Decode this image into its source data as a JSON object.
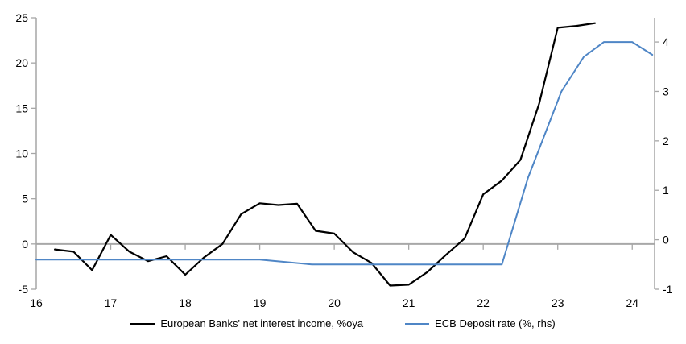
{
  "chart_data": {
    "type": "line",
    "title": "",
    "legend_position": "bottom-center",
    "grid": "zero-line-only",
    "colors": {
      "axis_gray": "#a6a6a6",
      "zero_line_gray": "#a8a8a8",
      "series_black": "#000000",
      "series_blue": "#4f86c6"
    },
    "x_axis": {
      "range": [
        16,
        24.3
      ],
      "tick_years": [
        16,
        17,
        18,
        19,
        20,
        21,
        22,
        23,
        24
      ],
      "tick_labels": [
        "16",
        "17",
        "18",
        "19",
        "20",
        "21",
        "22",
        "23",
        "24"
      ]
    },
    "y_left": {
      "range": [
        -5,
        25
      ],
      "ticks": [
        25,
        20,
        15,
        10,
        5,
        0,
        -5
      ],
      "tick_labels": [
        "25",
        "20",
        "15",
        "10",
        "5",
        "0",
        "-5"
      ]
    },
    "y_right": {
      "range": [
        -1,
        4.49
      ],
      "ticks": [
        4,
        3,
        2,
        1,
        0,
        -1
      ],
      "tick_labels": [
        "4",
        "3",
        "2",
        "1",
        "0",
        "-1"
      ]
    },
    "series": [
      {
        "name": "European Banks' net interest income, %oya",
        "axis": "left",
        "color": "#000000",
        "stroke_width": 2.2,
        "points": [
          [
            16.25,
            -0.6
          ],
          [
            16.5,
            -0.85
          ],
          [
            16.75,
            -2.9
          ],
          [
            17.0,
            1.0
          ],
          [
            17.25,
            -0.85
          ],
          [
            17.5,
            -1.9
          ],
          [
            17.75,
            -1.35
          ],
          [
            18.0,
            -3.4
          ],
          [
            18.25,
            -1.5
          ],
          [
            18.5,
            0.0
          ],
          [
            18.75,
            3.3
          ],
          [
            19.0,
            4.5
          ],
          [
            19.25,
            4.3
          ],
          [
            19.5,
            4.45
          ],
          [
            19.75,
            1.45
          ],
          [
            20.0,
            1.15
          ],
          [
            20.25,
            -0.9
          ],
          [
            20.5,
            -2.1
          ],
          [
            20.75,
            -4.6
          ],
          [
            21.0,
            -4.5
          ],
          [
            21.25,
            -3.1
          ],
          [
            21.5,
            -1.2
          ],
          [
            21.75,
            0.6
          ],
          [
            22.0,
            5.5
          ],
          [
            22.25,
            7.0
          ],
          [
            22.5,
            9.3
          ],
          [
            22.75,
            15.5
          ],
          [
            23.0,
            23.9
          ],
          [
            23.25,
            24.1
          ],
          [
            23.5,
            24.4
          ]
        ]
      },
      {
        "name": "ECB Deposit rate (%, rhs)",
        "axis": "right",
        "color": "#4f86c6",
        "stroke_width": 2,
        "points": [
          [
            16.0,
            -0.4
          ],
          [
            19.0,
            -0.4
          ],
          [
            19.7,
            -0.5
          ],
          [
            22.25,
            -0.5
          ],
          [
            22.6,
            1.25
          ],
          [
            23.05,
            3.0
          ],
          [
            23.35,
            3.7
          ],
          [
            23.62,
            4.0
          ],
          [
            24.0,
            4.0
          ],
          [
            24.27,
            3.74
          ]
        ]
      }
    ]
  },
  "legend": {
    "items": [
      {
        "label": "European Banks' net interest income, %oya",
        "color": "#000000"
      },
      {
        "label": "ECB Deposit rate (%, rhs)",
        "color": "#4f86c6"
      }
    ]
  }
}
